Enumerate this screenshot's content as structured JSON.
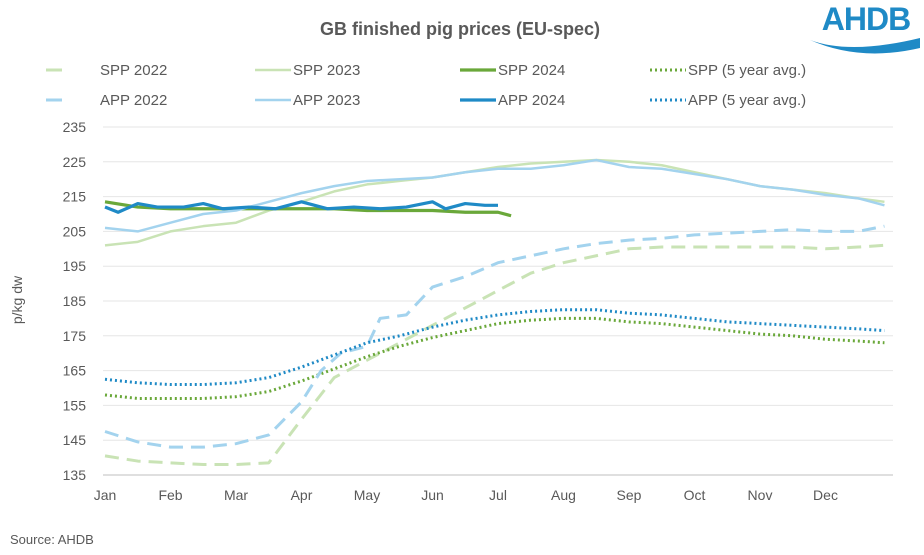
{
  "logo_text": "AHDB",
  "source": "Source: AHDB",
  "chart_data": {
    "type": "line",
    "title": "GB finished pig prices (EU-spec)",
    "ylabel": "p/kg dw",
    "xlabel": "",
    "ylim": [
      135,
      235
    ],
    "yticks": [
      135,
      145,
      155,
      165,
      175,
      185,
      195,
      205,
      215,
      225,
      235
    ],
    "categories": [
      "Jan",
      "Feb",
      "Mar",
      "Apr",
      "May",
      "Jun",
      "Jul",
      "Aug",
      "Sep",
      "Oct",
      "Nov",
      "Dec"
    ],
    "grid": true,
    "legend_placement": "top",
    "series": [
      {
        "name": "SPP 2022",
        "color": "#c9e3b5",
        "style": "dashed",
        "points": [
          [
            0,
            140.5
          ],
          [
            0.5,
            139
          ],
          [
            1,
            138.5
          ],
          [
            1.5,
            138
          ],
          [
            2,
            138
          ],
          [
            2.5,
            138.5
          ],
          [
            3,
            151
          ],
          [
            3.5,
            163
          ],
          [
            4,
            168
          ],
          [
            4.5,
            173
          ],
          [
            5,
            178
          ],
          [
            5.5,
            183
          ],
          [
            6,
            188
          ],
          [
            6.5,
            193
          ],
          [
            7,
            196
          ],
          [
            7.5,
            198
          ],
          [
            8,
            200
          ],
          [
            8.5,
            200.5
          ],
          [
            9,
            200.5
          ],
          [
            9.5,
            200.5
          ],
          [
            10,
            200.5
          ],
          [
            10.5,
            200.5
          ],
          [
            11,
            200
          ],
          [
            11.5,
            200.5
          ],
          [
            11.9,
            201
          ]
        ]
      },
      {
        "name": "SPP 2023",
        "color": "#c9e3b5",
        "style": "solid",
        "points": [
          [
            0,
            201
          ],
          [
            0.5,
            202
          ],
          [
            1,
            205
          ],
          [
            1.5,
            206.5
          ],
          [
            2,
            207.5
          ],
          [
            2.5,
            211
          ],
          [
            3,
            213.5
          ],
          [
            3.5,
            216.5
          ],
          [
            4,
            218.5
          ],
          [
            4.5,
            219.5
          ],
          [
            5,
            220.5
          ],
          [
            5.5,
            222
          ],
          [
            6,
            223.5
          ],
          [
            6.5,
            224.5
          ],
          [
            7,
            225
          ],
          [
            7.5,
            225.5
          ],
          [
            8,
            225
          ],
          [
            8.5,
            224
          ],
          [
            9,
            222
          ],
          [
            9.5,
            220
          ],
          [
            10,
            218
          ],
          [
            10.5,
            217
          ],
          [
            11,
            216
          ],
          [
            11.5,
            214.5
          ],
          [
            11.9,
            213.5
          ]
        ]
      },
      {
        "name": "SPP 2024",
        "color": "#6aa83a",
        "style": "solid-thick",
        "points": [
          [
            0,
            213.5
          ],
          [
            0.5,
            212
          ],
          [
            1,
            211.5
          ],
          [
            1.5,
            211.5
          ],
          [
            2,
            211.5
          ],
          [
            2.5,
            211.5
          ],
          [
            3,
            211.5
          ],
          [
            3.5,
            211.5
          ],
          [
            4,
            211
          ],
          [
            4.5,
            211
          ],
          [
            5,
            211
          ],
          [
            5.5,
            210.5
          ],
          [
            6,
            210.5
          ],
          [
            6.2,
            209.5
          ]
        ]
      },
      {
        "name": "SPP (5 year avg.)",
        "color": "#6aa83a",
        "style": "dotted",
        "points": [
          [
            0,
            158
          ],
          [
            0.5,
            157
          ],
          [
            1,
            157
          ],
          [
            1.5,
            157
          ],
          [
            2,
            157.5
          ],
          [
            2.5,
            159
          ],
          [
            3,
            162
          ],
          [
            3.5,
            165.5
          ],
          [
            4,
            169
          ],
          [
            4.5,
            172
          ],
          [
            5,
            174.5
          ],
          [
            5.5,
            176.5
          ],
          [
            6,
            178.5
          ],
          [
            6.5,
            179.5
          ],
          [
            7,
            180
          ],
          [
            7.5,
            180
          ],
          [
            8,
            179
          ],
          [
            8.5,
            178.5
          ],
          [
            9,
            177.5
          ],
          [
            9.5,
            176.5
          ],
          [
            10,
            175.5
          ],
          [
            10.5,
            175
          ],
          [
            11,
            174
          ],
          [
            11.5,
            173.5
          ],
          [
            11.9,
            173
          ]
        ]
      },
      {
        "name": "APP 2022",
        "color": "#a3d3ee",
        "style": "dashed",
        "points": [
          [
            0,
            147.5
          ],
          [
            0.5,
            144.5
          ],
          [
            1,
            143
          ],
          [
            1.5,
            143
          ],
          [
            2,
            144
          ],
          [
            2.5,
            146.5
          ],
          [
            3,
            156
          ],
          [
            3.3,
            165
          ],
          [
            3.6,
            170
          ],
          [
            4,
            172
          ],
          [
            4.2,
            180
          ],
          [
            4.6,
            181
          ],
          [
            5,
            189
          ],
          [
            5.5,
            192
          ],
          [
            6,
            196
          ],
          [
            6.5,
            198
          ],
          [
            7,
            200
          ],
          [
            7.5,
            201.5
          ],
          [
            8,
            202.5
          ],
          [
            8.5,
            203
          ],
          [
            9,
            204
          ],
          [
            9.5,
            204.5
          ],
          [
            10,
            205
          ],
          [
            10.5,
            205.5
          ],
          [
            11,
            205
          ],
          [
            11.5,
            205
          ],
          [
            11.9,
            206.5
          ]
        ]
      },
      {
        "name": "APP 2023",
        "color": "#a3d3ee",
        "style": "solid",
        "points": [
          [
            0,
            206
          ],
          [
            0.5,
            205
          ],
          [
            1,
            207.5
          ],
          [
            1.5,
            210
          ],
          [
            2,
            211
          ],
          [
            2.5,
            213.5
          ],
          [
            3,
            216
          ],
          [
            3.5,
            218
          ],
          [
            4,
            219.5
          ],
          [
            4.5,
            220
          ],
          [
            5,
            220.5
          ],
          [
            5.5,
            222
          ],
          [
            6,
            223
          ],
          [
            6.5,
            223
          ],
          [
            7,
            224
          ],
          [
            7.5,
            225.5
          ],
          [
            8,
            223.5
          ],
          [
            8.5,
            223
          ],
          [
            9,
            221.5
          ],
          [
            9.5,
            220
          ],
          [
            10,
            218
          ],
          [
            10.5,
            217
          ],
          [
            11,
            215.5
          ],
          [
            11.5,
            214.5
          ],
          [
            11.9,
            212.5
          ]
        ]
      },
      {
        "name": "APP 2024",
        "color": "#1f8ac6",
        "style": "solid-thick",
        "points": [
          [
            0,
            212
          ],
          [
            0.2,
            210.5
          ],
          [
            0.5,
            213
          ],
          [
            0.8,
            212
          ],
          [
            1.2,
            212
          ],
          [
            1.5,
            213
          ],
          [
            1.8,
            211.5
          ],
          [
            2.2,
            212
          ],
          [
            2.6,
            211.5
          ],
          [
            3,
            213.5
          ],
          [
            3.4,
            211.5
          ],
          [
            3.8,
            212
          ],
          [
            4.2,
            211.5
          ],
          [
            4.6,
            212
          ],
          [
            5,
            213.5
          ],
          [
            5.2,
            211.5
          ],
          [
            5.5,
            213
          ],
          [
            5.8,
            212.5
          ],
          [
            6,
            212.5
          ]
        ]
      },
      {
        "name": "APP (5 year avg.)",
        "color": "#1f8ac6",
        "style": "dotted",
        "points": [
          [
            0,
            162.5
          ],
          [
            0.5,
            161.5
          ],
          [
            1,
            161
          ],
          [
            1.5,
            161
          ],
          [
            2,
            161.5
          ],
          [
            2.5,
            163
          ],
          [
            3,
            166
          ],
          [
            3.5,
            169.5
          ],
          [
            4,
            173
          ],
          [
            4.5,
            175
          ],
          [
            5,
            177.5
          ],
          [
            5.5,
            179.5
          ],
          [
            6,
            181
          ],
          [
            6.5,
            182
          ],
          [
            7,
            182.5
          ],
          [
            7.5,
            182.5
          ],
          [
            8,
            181.5
          ],
          [
            8.5,
            181
          ],
          [
            9,
            180
          ],
          [
            9.5,
            179
          ],
          [
            10,
            178.5
          ],
          [
            10.5,
            178
          ],
          [
            11,
            177.5
          ],
          [
            11.5,
            177
          ],
          [
            11.9,
            176.5
          ]
        ]
      }
    ]
  }
}
